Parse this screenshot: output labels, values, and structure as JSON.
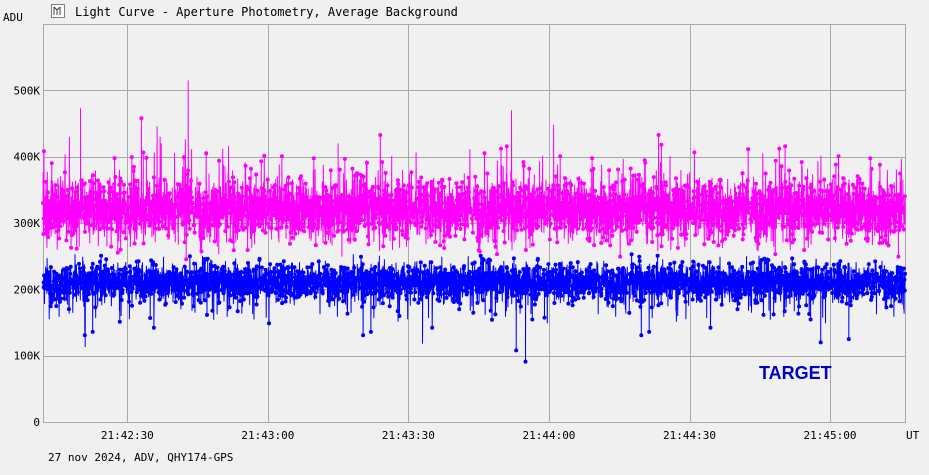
{
  "window": {
    "title": "Light Curve - Aperture Photometry, Average Background"
  },
  "footer": {
    "info": "27 nov 2024, ADV, QHY174-GPS"
  },
  "chart_data": {
    "type": "line",
    "title": "Light Curve - Aperture Photometry, Average Background",
    "ylabel": "ADU",
    "xlabel": "UT",
    "ylim": [
      0,
      600000
    ],
    "yticks": [
      0,
      100000,
      200000,
      300000,
      400000,
      500000
    ],
    "ytick_labels": [
      "0",
      "100K",
      "200K",
      "300K",
      "400K",
      "500K"
    ],
    "xlim": [
      "21:42:12",
      "21:45:16"
    ],
    "xticks": [
      "21:42:30",
      "21:43:00",
      "21:43:30",
      "21:44:00",
      "21:44:30",
      "21:45:00"
    ],
    "grid": true,
    "annotation": "TARGET",
    "series": [
      {
        "name": "",
        "color": "#ff00ff",
        "mean": 320000,
        "spread": 40000,
        "samples_per_second": 25,
        "peak_outliers": [
          {
            "t": "21:42:43",
            "y": 515000
          },
          {
            "t": "21:42:20",
            "y": 473000
          },
          {
            "t": "21:43:52",
            "y": 470000
          },
          {
            "t": "21:42:33",
            "y": 458000
          },
          {
            "t": "21:44:01",
            "y": 448000
          },
          {
            "t": "21:42:37",
            "y": 430000
          },
          {
            "t": "21:43:15",
            "y": 420000
          },
          {
            "t": "21:44:24",
            "y": 418000
          }
        ]
      },
      {
        "name": "",
        "color": "#0000ff",
        "mean": 212000,
        "spread": 25000,
        "samples_per_second": 25,
        "low_outliers": [
          {
            "t": "21:43:55",
            "y": 91000
          },
          {
            "t": "21:42:21",
            "y": 113000
          },
          {
            "t": "21:43:53",
            "y": 108000
          },
          {
            "t": "21:43:33",
            "y": 118000
          },
          {
            "t": "21:44:58",
            "y": 120000
          },
          {
            "t": "21:45:04",
            "y": 125000
          }
        ]
      }
    ]
  },
  "colors": {
    "background": "#f0f0f0",
    "grid": "#a8a8a8",
    "magenta_series": "#ff00ff",
    "blue_series": "#0000ff",
    "annotation": "#0000cc"
  },
  "icons": {
    "window_icon": "chart-window-icon"
  }
}
